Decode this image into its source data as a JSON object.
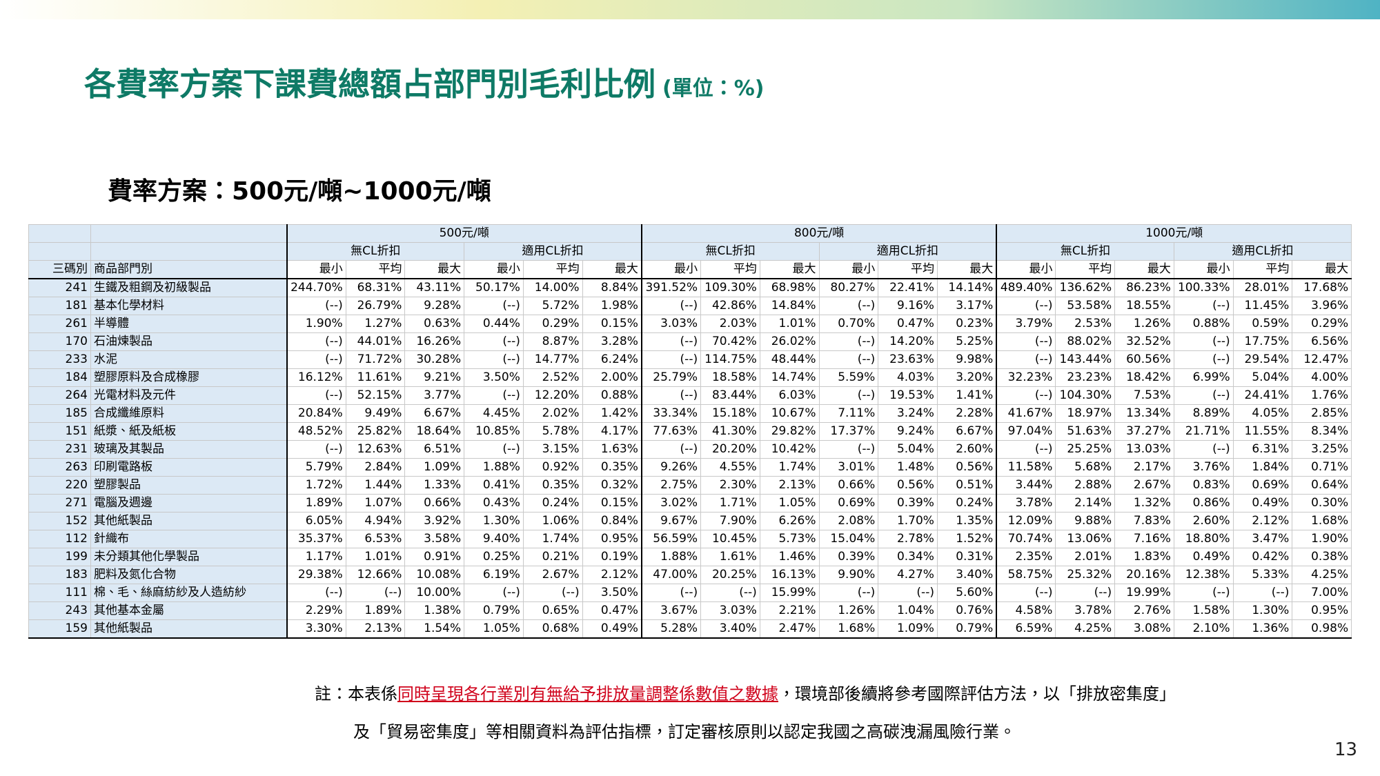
{
  "header": {
    "title": "各費率方案下課費總額占部門別毛利比例",
    "unit": "(單位：%)"
  },
  "subtitle": "費率方案：500元/噸~1000元/噸",
  "table": {
    "groups": [
      "500元/噸",
      "800元/噸",
      "1000元/噸"
    ],
    "subgroups": [
      "無CL折扣",
      "適用CL折扣",
      "無CL折扣",
      "適用CL折扣",
      "無CL折扣",
      "適用CL折扣"
    ],
    "columns": [
      "三碼別",
      "商品部門別",
      "最小",
      "平均",
      "最大",
      "最小",
      "平均",
      "最大",
      "最小",
      "平均",
      "最大",
      "最小",
      "平均",
      "最大",
      "最小",
      "平均",
      "最大",
      "最小",
      "平均",
      "最大"
    ],
    "rows": [
      [
        "241",
        "生鐵及粗鋼及初級製品",
        "244.70%",
        "68.31%",
        "43.11%",
        "50.17%",
        "14.00%",
        "8.84%",
        "391.52%",
        "109.30%",
        "68.98%",
        "80.27%",
        "22.41%",
        "14.14%",
        "489.40%",
        "136.62%",
        "86.23%",
        "100.33%",
        "28.01%",
        "17.68%"
      ],
      [
        "181",
        "基本化學材料",
        "(--)",
        "26.79%",
        "9.28%",
        "(--)",
        "5.72%",
        "1.98%",
        "(--)",
        "42.86%",
        "14.84%",
        "(--)",
        "9.16%",
        "3.17%",
        "(--)",
        "53.58%",
        "18.55%",
        "(--)",
        "11.45%",
        "3.96%"
      ],
      [
        "261",
        "半導體",
        "1.90%",
        "1.27%",
        "0.63%",
        "0.44%",
        "0.29%",
        "0.15%",
        "3.03%",
        "2.03%",
        "1.01%",
        "0.70%",
        "0.47%",
        "0.23%",
        "3.79%",
        "2.53%",
        "1.26%",
        "0.88%",
        "0.59%",
        "0.29%"
      ],
      [
        "170",
        "石油煉製品",
        "(--)",
        "44.01%",
        "16.26%",
        "(--)",
        "8.87%",
        "3.28%",
        "(--)",
        "70.42%",
        "26.02%",
        "(--)",
        "14.20%",
        "5.25%",
        "(--)",
        "88.02%",
        "32.52%",
        "(--)",
        "17.75%",
        "6.56%"
      ],
      [
        "233",
        "水泥",
        "(--)",
        "71.72%",
        "30.28%",
        "(--)",
        "14.77%",
        "6.24%",
        "(--)",
        "114.75%",
        "48.44%",
        "(--)",
        "23.63%",
        "9.98%",
        "(--)",
        "143.44%",
        "60.56%",
        "(--)",
        "29.54%",
        "12.47%"
      ],
      [
        "184",
        "塑膠原料及合成橡膠",
        "16.12%",
        "11.61%",
        "9.21%",
        "3.50%",
        "2.52%",
        "2.00%",
        "25.79%",
        "18.58%",
        "14.74%",
        "5.59%",
        "4.03%",
        "3.20%",
        "32.23%",
        "23.23%",
        "18.42%",
        "6.99%",
        "5.04%",
        "4.00%"
      ],
      [
        "264",
        "光電材料及元件",
        "(--)",
        "52.15%",
        "3.77%",
        "(--)",
        "12.20%",
        "0.88%",
        "(--)",
        "83.44%",
        "6.03%",
        "(--)",
        "19.53%",
        "1.41%",
        "(--)",
        "104.30%",
        "7.53%",
        "(--)",
        "24.41%",
        "1.76%"
      ],
      [
        "185",
        "合成纖維原料",
        "20.84%",
        "9.49%",
        "6.67%",
        "4.45%",
        "2.02%",
        "1.42%",
        "33.34%",
        "15.18%",
        "10.67%",
        "7.11%",
        "3.24%",
        "2.28%",
        "41.67%",
        "18.97%",
        "13.34%",
        "8.89%",
        "4.05%",
        "2.85%"
      ],
      [
        "151",
        "紙漿、紙及紙板",
        "48.52%",
        "25.82%",
        "18.64%",
        "10.85%",
        "5.78%",
        "4.17%",
        "77.63%",
        "41.30%",
        "29.82%",
        "17.37%",
        "9.24%",
        "6.67%",
        "97.04%",
        "51.63%",
        "37.27%",
        "21.71%",
        "11.55%",
        "8.34%"
      ],
      [
        "231",
        "玻璃及其製品",
        "(--)",
        "12.63%",
        "6.51%",
        "(--)",
        "3.15%",
        "1.63%",
        "(--)",
        "20.20%",
        "10.42%",
        "(--)",
        "5.04%",
        "2.60%",
        "(--)",
        "25.25%",
        "13.03%",
        "(--)",
        "6.31%",
        "3.25%"
      ],
      [
        "263",
        "印刷電路板",
        "5.79%",
        "2.84%",
        "1.09%",
        "1.88%",
        "0.92%",
        "0.35%",
        "9.26%",
        "4.55%",
        "1.74%",
        "3.01%",
        "1.48%",
        "0.56%",
        "11.58%",
        "5.68%",
        "2.17%",
        "3.76%",
        "1.84%",
        "0.71%"
      ],
      [
        "220",
        "塑膠製品",
        "1.72%",
        "1.44%",
        "1.33%",
        "0.41%",
        "0.35%",
        "0.32%",
        "2.75%",
        "2.30%",
        "2.13%",
        "0.66%",
        "0.56%",
        "0.51%",
        "3.44%",
        "2.88%",
        "2.67%",
        "0.83%",
        "0.69%",
        "0.64%"
      ],
      [
        "271",
        "電腦及週邊",
        "1.89%",
        "1.07%",
        "0.66%",
        "0.43%",
        "0.24%",
        "0.15%",
        "3.02%",
        "1.71%",
        "1.05%",
        "0.69%",
        "0.39%",
        "0.24%",
        "3.78%",
        "2.14%",
        "1.32%",
        "0.86%",
        "0.49%",
        "0.30%"
      ],
      [
        "152",
        "其他紙製品",
        "6.05%",
        "4.94%",
        "3.92%",
        "1.30%",
        "1.06%",
        "0.84%",
        "9.67%",
        "7.90%",
        "6.26%",
        "2.08%",
        "1.70%",
        "1.35%",
        "12.09%",
        "9.88%",
        "7.83%",
        "2.60%",
        "2.12%",
        "1.68%"
      ],
      [
        "112",
        "針織布",
        "35.37%",
        "6.53%",
        "3.58%",
        "9.40%",
        "1.74%",
        "0.95%",
        "56.59%",
        "10.45%",
        "5.73%",
        "15.04%",
        "2.78%",
        "1.52%",
        "70.74%",
        "13.06%",
        "7.16%",
        "18.80%",
        "3.47%",
        "1.90%"
      ],
      [
        "199",
        "未分類其他化學製品",
        "1.17%",
        "1.01%",
        "0.91%",
        "0.25%",
        "0.21%",
        "0.19%",
        "1.88%",
        "1.61%",
        "1.46%",
        "0.39%",
        "0.34%",
        "0.31%",
        "2.35%",
        "2.01%",
        "1.83%",
        "0.49%",
        "0.42%",
        "0.38%"
      ],
      [
        "183",
        "肥料及氮化合物",
        "29.38%",
        "12.66%",
        "10.08%",
        "6.19%",
        "2.67%",
        "2.12%",
        "47.00%",
        "20.25%",
        "16.13%",
        "9.90%",
        "4.27%",
        "3.40%",
        "58.75%",
        "25.32%",
        "20.16%",
        "12.38%",
        "5.33%",
        "4.25%"
      ],
      [
        "111",
        "棉、毛、絲麻紡紗及人造紡紗",
        "(--)",
        "(--)",
        "10.00%",
        "(--)",
        "(--)",
        "3.50%",
        "(--)",
        "(--)",
        "15.99%",
        "(--)",
        "(--)",
        "5.60%",
        "(--)",
        "(--)",
        "19.99%",
        "(--)",
        "(--)",
        "7.00%"
      ],
      [
        "243",
        "其他基本金屬",
        "2.29%",
        "1.89%",
        "1.38%",
        "0.79%",
        "0.65%",
        "0.47%",
        "3.67%",
        "3.03%",
        "2.21%",
        "1.26%",
        "1.04%",
        "0.76%",
        "4.58%",
        "3.78%",
        "2.76%",
        "1.58%",
        "1.30%",
        "0.95%"
      ],
      [
        "159",
        "其他紙製品",
        "3.30%",
        "2.13%",
        "1.54%",
        "1.05%",
        "0.68%",
        "0.49%",
        "5.28%",
        "3.40%",
        "2.47%",
        "1.68%",
        "1.09%",
        "0.79%",
        "6.59%",
        "4.25%",
        "3.08%",
        "2.10%",
        "1.36%",
        "0.98%"
      ]
    ]
  },
  "note": {
    "line1_start": "註：本表係",
    "line1_highlight": "同時呈現各行業別有無給予排放量調整係數值之數據",
    "line1_end": "，環境部後續將參考國際評估方法，以「排放密集度」",
    "line2": "及「貿易密集度」等相關資料為評估指標，訂定審核原則以認定我國之高碳洩漏風險行業。"
  },
  "page_number": "13"
}
